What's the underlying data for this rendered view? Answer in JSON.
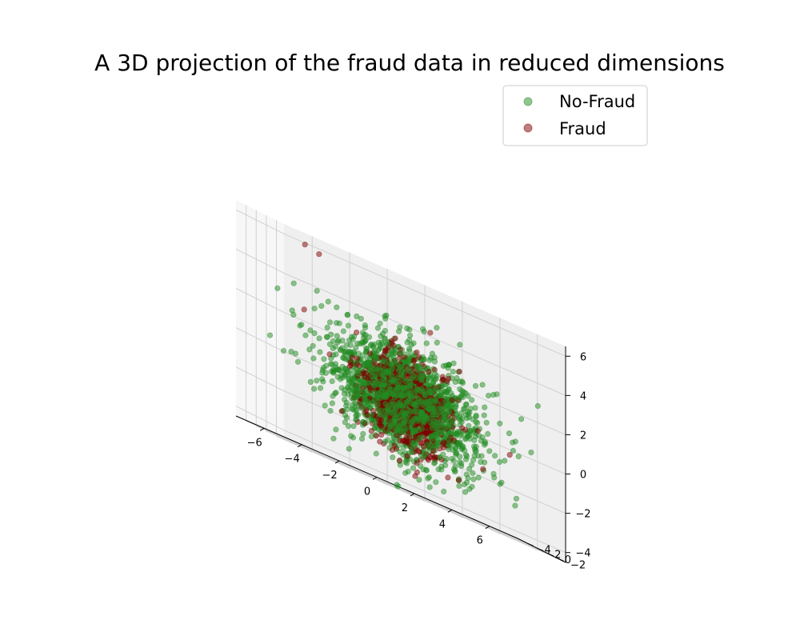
{
  "chart_data": {
    "type": "scatter",
    "projection": "3d",
    "title": "A 3D projection of the fraud data in reduced dimensions",
    "xlabel": "",
    "ylabel": "",
    "zlabel": "",
    "xlim": [
      -7.5,
      7.5
    ],
    "ylim": [
      -3.5,
      6
    ],
    "zlim": [
      -4.5,
      6.5
    ],
    "x_ticks": [
      -6,
      -4,
      -2,
      0,
      2,
      4,
      6
    ],
    "y_ticks": [
      -2,
      0,
      2,
      4
    ],
    "z_ticks": [
      -4,
      -2,
      0,
      2,
      4,
      6
    ],
    "grid": true,
    "legend_position": "top-right",
    "series": [
      {
        "name": "No-Fraud",
        "color": "#228b22",
        "opacity": 0.5,
        "cloud": {
          "n_points": 1500,
          "center": [
            0,
            0.5,
            0.2
          ],
          "spread": [
            2.0,
            1.4,
            1.4
          ]
        },
        "sample_points": [
          [
            -6.5,
            1.5,
            3.0
          ],
          [
            -5.8,
            1.2,
            2.2
          ],
          [
            -5.5,
            2.0,
            3.6
          ],
          [
            -4.8,
            0.5,
            2.8
          ],
          [
            5.5,
            -1.0,
            0.5
          ],
          [
            6.2,
            -1.5,
            0.3
          ],
          [
            5.8,
            -0.5,
            -0.2
          ],
          [
            4.9,
            -2.0,
            0.8
          ],
          [
            0.5,
            -2.5,
            -3.2
          ],
          [
            1.2,
            -2.8,
            -3.6
          ],
          [
            -0.3,
            3.0,
            4.0
          ],
          [
            0.8,
            2.5,
            3.8
          ]
        ]
      },
      {
        "name": "Fraud",
        "color": "#800000",
        "opacity": 0.5,
        "cloud": {
          "n_points": 650,
          "center": [
            0,
            0.5,
            0.0
          ],
          "spread": [
            1.2,
            1.0,
            1.1
          ]
        },
        "sample_points": [
          [
            -4.5,
            3.5,
            5.8
          ],
          [
            -3.4,
            4.8,
            5.6
          ],
          [
            5.2,
            -1.0,
            -0.3
          ],
          [
            1.5,
            -2.5,
            -2.8
          ],
          [
            -5.0,
            1.8,
            2.5
          ],
          [
            3.5,
            -2.0,
            -1.6
          ]
        ]
      }
    ]
  }
}
